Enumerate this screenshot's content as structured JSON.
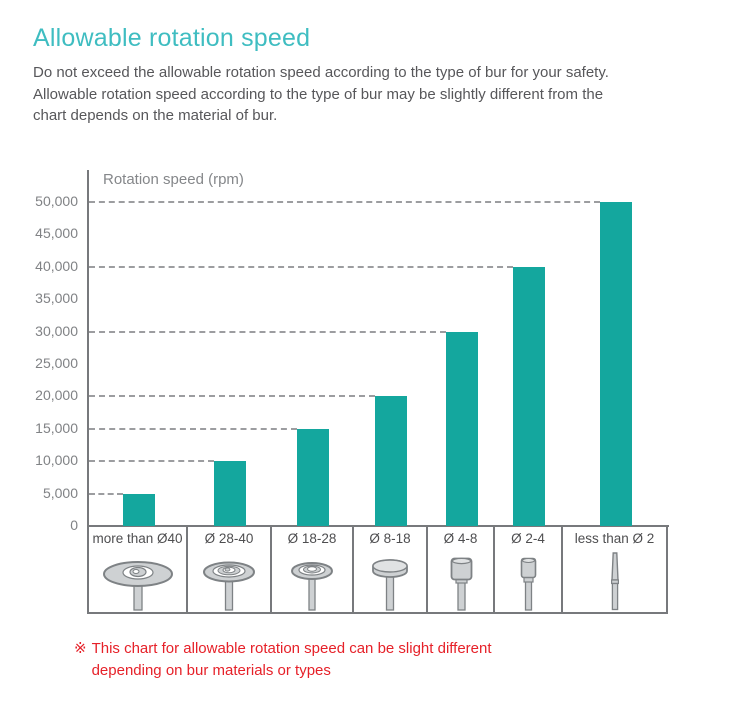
{
  "header": {
    "title": "Allowable rotation speed",
    "body_lines": [
      "Do not exceed the allowable rotation speed according to the type of bur for your safety.",
      "Allowable rotation speed according to the type of bur may be slightly different from the",
      "chart depends on the material of bur."
    ]
  },
  "chart_data": {
    "type": "bar",
    "title": "Rotation speed (rpm)",
    "categories": [
      "more than Ø40",
      "Ø 28-40",
      "Ø 18-28",
      "Ø 8-18",
      "Ø 4-8",
      "Ø 2-4",
      "less than Ø 2"
    ],
    "values": [
      5000,
      10000,
      15000,
      20000,
      30000,
      40000,
      50000
    ],
    "icons": [
      "large-disc-bur",
      "medium-disc-bur",
      "small-disc-bur",
      "flat-disc-bur",
      "cylinder-bur",
      "small-cylinder-bur",
      "needle-bur"
    ],
    "yticks": [
      {
        "value": 0,
        "label": "0"
      },
      {
        "value": 5000,
        "label": "5,000"
      },
      {
        "value": 10000,
        "label": "10,000"
      },
      {
        "value": 15000,
        "label": "15,000"
      },
      {
        "value": 20000,
        "label": "20,000"
      },
      {
        "value": 25000,
        "label": "25,000"
      },
      {
        "value": 30000,
        "label": "30,000"
      },
      {
        "value": 35000,
        "label": "35,000"
      },
      {
        "value": 40000,
        "label": "40,000"
      },
      {
        "value": 45000,
        "label": "45,000"
      },
      {
        "value": 50000,
        "label": "50,000"
      }
    ],
    "ylim": [
      0,
      50000
    ],
    "xlabel": "",
    "ylabel": "Rotation speed (rpm)",
    "grid": "dashed horizontal line at each bar value, running from the y-axis to the bar",
    "legend": "none",
    "bar_color": "#14a79e"
  },
  "footnote": {
    "marker": "※",
    "lines": [
      "This chart for allowable rotation speed can be slight different",
      "depending on bur materials or types"
    ],
    "color": "#e62129"
  },
  "colors": {
    "title_accent": "#3fbdc1",
    "body_text": "#57575a",
    "axis_gray": "#77797c",
    "tick_text": "#808285",
    "grid_dash": "#9c9da0"
  }
}
